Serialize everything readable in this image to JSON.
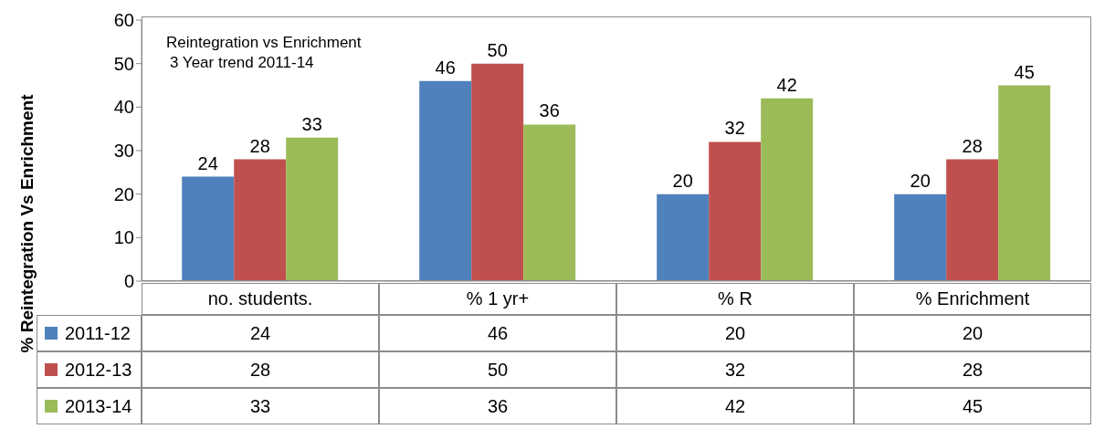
{
  "chart_data": {
    "type": "bar",
    "title": "Reintegration vs Enrichment",
    "subtitle": "3 Year trend 2011-14",
    "ylabel": "% Reintegration Vs Enrichment",
    "categories": [
      "no. students.",
      "% 1 yr+",
      "% R",
      "% Enrichment"
    ],
    "series": [
      {
        "name": "2011-12",
        "color": "#4f81bd",
        "values": [
          24,
          46,
          20,
          20
        ]
      },
      {
        "name": "2012-13",
        "color": "#c0504d",
        "values": [
          28,
          50,
          32,
          28
        ]
      },
      {
        "name": "2013-14",
        "color": "#9bbb59",
        "values": [
          33,
          36,
          42,
          45
        ]
      }
    ],
    "annotations": [
      "24",
      "46",
      "20",
      "20",
      "28",
      "50",
      "32",
      "28",
      "33",
      "36",
      "42",
      "45"
    ],
    "ylim": [
      0,
      60
    ],
    "yticks": [
      0,
      10,
      20,
      30,
      40,
      50,
      60
    ],
    "grid": false,
    "legend": "bottom left",
    "data_labels": true
  }
}
